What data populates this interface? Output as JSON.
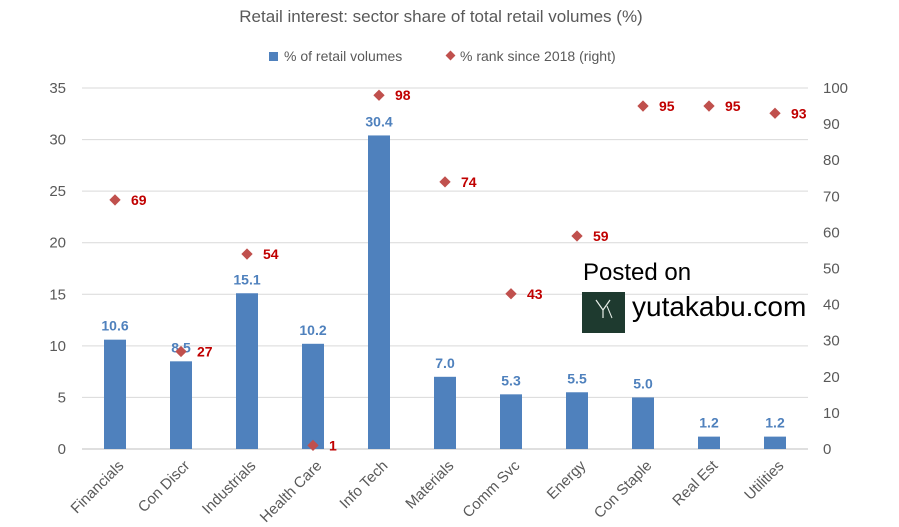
{
  "chart_data": {
    "type": "bar",
    "title": "Retail interest: sector share of total retail volumes (%)",
    "categories": [
      "Financials",
      "Con Discr",
      "Industrials",
      "Health Care",
      "Info Tech",
      "Materials",
      "Comm Svc",
      "Energy",
      "Con Staple",
      "Real Est",
      "Utilities"
    ],
    "series": [
      {
        "name": "% of retail volumes",
        "kind": "bar",
        "axis": "left",
        "color": "#4F81BD",
        "values": [
          10.6,
          8.5,
          15.1,
          10.2,
          30.4,
          7.0,
          5.3,
          5.5,
          5.0,
          1.2,
          1.2
        ],
        "labels": [
          "10.6",
          "8.5",
          "15.1",
          "10.2",
          "30.4",
          "7.0",
          "5.3",
          "5.5",
          "5.0",
          "1.2",
          "1.2"
        ]
      },
      {
        "name": "% rank since 2018 (right)",
        "kind": "scatter",
        "marker": "diamond",
        "axis": "right",
        "color": "#C0504D",
        "values": [
          69,
          27,
          54,
          1,
          98,
          74,
          43,
          59,
          95,
          95,
          93
        ],
        "labels": [
          "69",
          "27",
          "54",
          "1",
          "98",
          "74",
          "43",
          "59",
          "95",
          "95",
          "93"
        ]
      }
    ],
    "ylim": [
      0,
      35
    ],
    "y_ticks": [
      "0",
      "5",
      "10",
      "15",
      "20",
      "25",
      "30",
      "35"
    ],
    "y2lim": [
      0,
      100
    ],
    "y2_ticks": [
      "0",
      "10",
      "20",
      "30",
      "40",
      "50",
      "60",
      "70",
      "80",
      "90",
      "100"
    ],
    "grid": true,
    "legend_position": "top"
  },
  "watermark": {
    "line1": "Posted on",
    "line2": "yutakabu.com",
    "logo_text": "yutakabu.com",
    "logo_color": "#1e3a2f"
  }
}
